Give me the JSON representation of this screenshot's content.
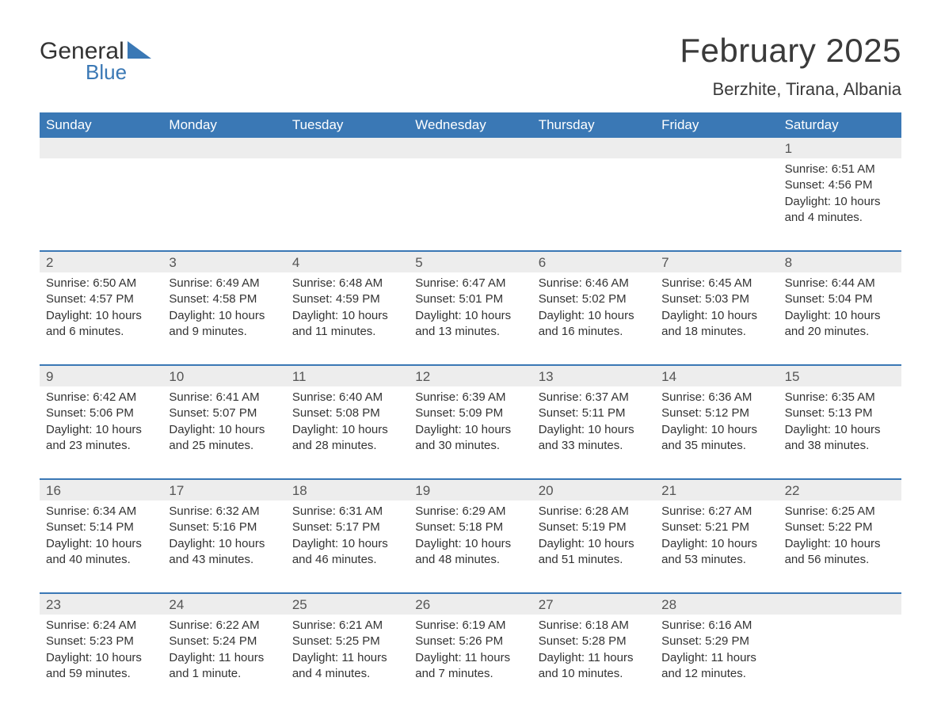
{
  "logo": {
    "word1": "General",
    "word2": "Blue",
    "triangle_color": "#3a78b5"
  },
  "header": {
    "month_title": "February 2025",
    "location": "Berzhite, Tirana, Albania"
  },
  "colors": {
    "header_bg": "#3a78b5",
    "header_text": "#ffffff",
    "daynum_bg": "#ededed",
    "week_border": "#3a78b5",
    "text": "#333333",
    "background": "#ffffff"
  },
  "day_names": [
    "Sunday",
    "Monday",
    "Tuesday",
    "Wednesday",
    "Thursday",
    "Friday",
    "Saturday"
  ],
  "weeks": [
    {
      "days": [
        {
          "empty": true
        },
        {
          "empty": true
        },
        {
          "empty": true
        },
        {
          "empty": true
        },
        {
          "empty": true
        },
        {
          "empty": true
        },
        {
          "num": "1",
          "sunrise": "Sunrise: 6:51 AM",
          "sunset": "Sunset: 4:56 PM",
          "daylight": "Daylight: 10 hours and 4 minutes."
        }
      ]
    },
    {
      "days": [
        {
          "num": "2",
          "sunrise": "Sunrise: 6:50 AM",
          "sunset": "Sunset: 4:57 PM",
          "daylight": "Daylight: 10 hours and 6 minutes."
        },
        {
          "num": "3",
          "sunrise": "Sunrise: 6:49 AM",
          "sunset": "Sunset: 4:58 PM",
          "daylight": "Daylight: 10 hours and 9 minutes."
        },
        {
          "num": "4",
          "sunrise": "Sunrise: 6:48 AM",
          "sunset": "Sunset: 4:59 PM",
          "daylight": "Daylight: 10 hours and 11 minutes."
        },
        {
          "num": "5",
          "sunrise": "Sunrise: 6:47 AM",
          "sunset": "Sunset: 5:01 PM",
          "daylight": "Daylight: 10 hours and 13 minutes."
        },
        {
          "num": "6",
          "sunrise": "Sunrise: 6:46 AM",
          "sunset": "Sunset: 5:02 PM",
          "daylight": "Daylight: 10 hours and 16 minutes."
        },
        {
          "num": "7",
          "sunrise": "Sunrise: 6:45 AM",
          "sunset": "Sunset: 5:03 PM",
          "daylight": "Daylight: 10 hours and 18 minutes."
        },
        {
          "num": "8",
          "sunrise": "Sunrise: 6:44 AM",
          "sunset": "Sunset: 5:04 PM",
          "daylight": "Daylight: 10 hours and 20 minutes."
        }
      ]
    },
    {
      "days": [
        {
          "num": "9",
          "sunrise": "Sunrise: 6:42 AM",
          "sunset": "Sunset: 5:06 PM",
          "daylight": "Daylight: 10 hours and 23 minutes."
        },
        {
          "num": "10",
          "sunrise": "Sunrise: 6:41 AM",
          "sunset": "Sunset: 5:07 PM",
          "daylight": "Daylight: 10 hours and 25 minutes."
        },
        {
          "num": "11",
          "sunrise": "Sunrise: 6:40 AM",
          "sunset": "Sunset: 5:08 PM",
          "daylight": "Daylight: 10 hours and 28 minutes."
        },
        {
          "num": "12",
          "sunrise": "Sunrise: 6:39 AM",
          "sunset": "Sunset: 5:09 PM",
          "daylight": "Daylight: 10 hours and 30 minutes."
        },
        {
          "num": "13",
          "sunrise": "Sunrise: 6:37 AM",
          "sunset": "Sunset: 5:11 PM",
          "daylight": "Daylight: 10 hours and 33 minutes."
        },
        {
          "num": "14",
          "sunrise": "Sunrise: 6:36 AM",
          "sunset": "Sunset: 5:12 PM",
          "daylight": "Daylight: 10 hours and 35 minutes."
        },
        {
          "num": "15",
          "sunrise": "Sunrise: 6:35 AM",
          "sunset": "Sunset: 5:13 PM",
          "daylight": "Daylight: 10 hours and 38 minutes."
        }
      ]
    },
    {
      "days": [
        {
          "num": "16",
          "sunrise": "Sunrise: 6:34 AM",
          "sunset": "Sunset: 5:14 PM",
          "daylight": "Daylight: 10 hours and 40 minutes."
        },
        {
          "num": "17",
          "sunrise": "Sunrise: 6:32 AM",
          "sunset": "Sunset: 5:16 PM",
          "daylight": "Daylight: 10 hours and 43 minutes."
        },
        {
          "num": "18",
          "sunrise": "Sunrise: 6:31 AM",
          "sunset": "Sunset: 5:17 PM",
          "daylight": "Daylight: 10 hours and 46 minutes."
        },
        {
          "num": "19",
          "sunrise": "Sunrise: 6:29 AM",
          "sunset": "Sunset: 5:18 PM",
          "daylight": "Daylight: 10 hours and 48 minutes."
        },
        {
          "num": "20",
          "sunrise": "Sunrise: 6:28 AM",
          "sunset": "Sunset: 5:19 PM",
          "daylight": "Daylight: 10 hours and 51 minutes."
        },
        {
          "num": "21",
          "sunrise": "Sunrise: 6:27 AM",
          "sunset": "Sunset: 5:21 PM",
          "daylight": "Daylight: 10 hours and 53 minutes."
        },
        {
          "num": "22",
          "sunrise": "Sunrise: 6:25 AM",
          "sunset": "Sunset: 5:22 PM",
          "daylight": "Daylight: 10 hours and 56 minutes."
        }
      ]
    },
    {
      "days": [
        {
          "num": "23",
          "sunrise": "Sunrise: 6:24 AM",
          "sunset": "Sunset: 5:23 PM",
          "daylight": "Daylight: 10 hours and 59 minutes."
        },
        {
          "num": "24",
          "sunrise": "Sunrise: 6:22 AM",
          "sunset": "Sunset: 5:24 PM",
          "daylight": "Daylight: 11 hours and 1 minute."
        },
        {
          "num": "25",
          "sunrise": "Sunrise: 6:21 AM",
          "sunset": "Sunset: 5:25 PM",
          "daylight": "Daylight: 11 hours and 4 minutes."
        },
        {
          "num": "26",
          "sunrise": "Sunrise: 6:19 AM",
          "sunset": "Sunset: 5:26 PM",
          "daylight": "Daylight: 11 hours and 7 minutes."
        },
        {
          "num": "27",
          "sunrise": "Sunrise: 6:18 AM",
          "sunset": "Sunset: 5:28 PM",
          "daylight": "Daylight: 11 hours and 10 minutes."
        },
        {
          "num": "28",
          "sunrise": "Sunrise: 6:16 AM",
          "sunset": "Sunset: 5:29 PM",
          "daylight": "Daylight: 11 hours and 12 minutes."
        },
        {
          "empty": true
        }
      ]
    }
  ]
}
